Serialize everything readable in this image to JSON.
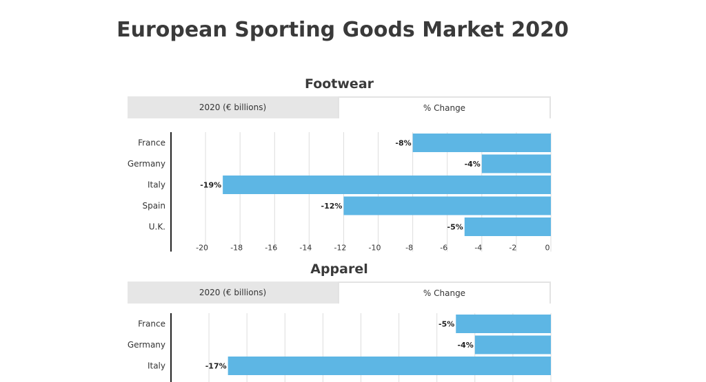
{
  "title": "European Sporting Goods Market 2020",
  "colors": {
    "bar": "#5db6e4",
    "grid": "#dddddd",
    "axis": "#222222"
  },
  "panels": [
    {
      "name": "Footwear",
      "tabs": [
        {
          "label": "2020 (€ billions)",
          "active": false
        },
        {
          "label": "% Change",
          "active": true
        }
      ]
    },
    {
      "name": "Apparel",
      "tabs": [
        {
          "label": "2020 (€ billions)",
          "active": false
        },
        {
          "label": "% Change",
          "active": true
        }
      ]
    }
  ],
  "chart_data": [
    {
      "type": "bar",
      "orientation": "horizontal",
      "title": "Footwear",
      "categories": [
        "France",
        "Germany",
        "Italy",
        "Spain",
        "U.K."
      ],
      "values": [
        -8,
        -4,
        -19,
        -12,
        -5
      ],
      "data_labels": [
        "-8%",
        "-4%",
        "-19%",
        "-12%",
        "-5%"
      ],
      "xlim": [
        -22,
        0
      ],
      "xticks": [
        -20,
        -18,
        -16,
        -14,
        -12,
        -10,
        -8,
        -6,
        -4,
        -2,
        0
      ],
      "grid": true
    },
    {
      "type": "bar",
      "orientation": "horizontal",
      "title": "Apparel",
      "categories": [
        "France",
        "Germany",
        "Italy"
      ],
      "values": [
        -5,
        -4,
        -17
      ],
      "data_labels": [
        "-5%",
        "-4%",
        "-17%"
      ],
      "xlim": [
        -20,
        0
      ],
      "xticks": [],
      "grid": true
    }
  ]
}
